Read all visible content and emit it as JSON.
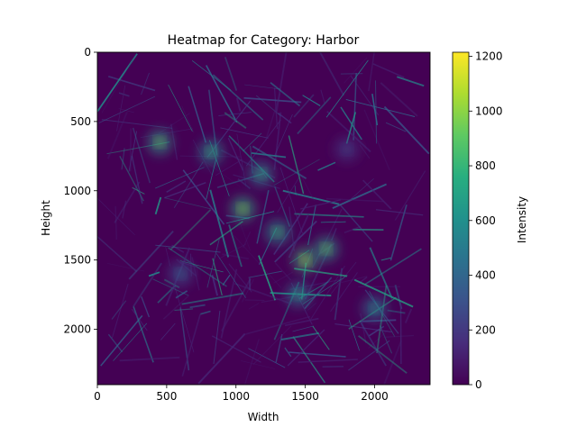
{
  "chart_data": {
    "type": "heatmap",
    "title": "Heatmap for Category: Harbor",
    "xlabel": "Width",
    "ylabel": "Height",
    "colorbar_label": "Intensity",
    "colormap": "viridis",
    "x_range": [
      0,
      2400
    ],
    "y_range": [
      0,
      2400
    ],
    "y_axis_inverted": true,
    "x_ticks": [
      0,
      500,
      1000,
      1500,
      2000
    ],
    "y_ticks": [
      0,
      500,
      1000,
      1500,
      2000
    ],
    "colorbar_range": [
      0,
      1215
    ],
    "colorbar_ticks": [
      0,
      200,
      400,
      600,
      800,
      1000,
      1200
    ],
    "hotspots": [
      {
        "x": 450,
        "y": 650,
        "intensity": 1000
      },
      {
        "x": 820,
        "y": 720,
        "intensity": 850
      },
      {
        "x": 1050,
        "y": 1130,
        "intensity": 1100
      },
      {
        "x": 1180,
        "y": 880,
        "intensity": 800
      },
      {
        "x": 1300,
        "y": 1300,
        "intensity": 900
      },
      {
        "x": 1500,
        "y": 1500,
        "intensity": 1150
      },
      {
        "x": 1650,
        "y": 1420,
        "intensity": 1000
      },
      {
        "x": 1450,
        "y": 1750,
        "intensity": 750
      },
      {
        "x": 2000,
        "y": 1850,
        "intensity": 700
      },
      {
        "x": 600,
        "y": 1600,
        "intensity": 450
      },
      {
        "x": 1800,
        "y": 700,
        "intensity": 300
      }
    ]
  }
}
